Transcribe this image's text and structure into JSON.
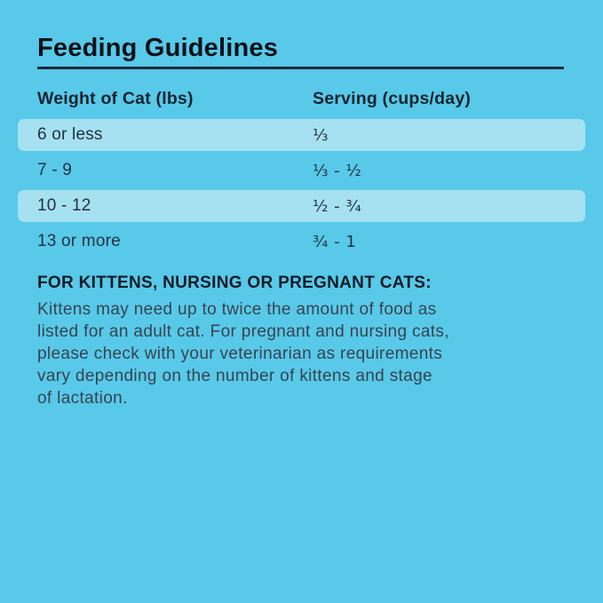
{
  "title": "Feeding Guidelines",
  "table": {
    "columns": [
      "Weight of Cat (lbs)",
      "Serving (cups/day)"
    ],
    "rows": [
      {
        "weight": "6 or less",
        "serving": "⅓",
        "highlighted": true
      },
      {
        "weight": "7 - 9",
        "serving": "⅓ - ½",
        "highlighted": false
      },
      {
        "weight": "10 - 12",
        "serving": "½ - ¾",
        "highlighted": true
      },
      {
        "weight": "13 or more",
        "serving": "¾ - 1",
        "highlighted": false
      }
    ]
  },
  "note": {
    "heading": "FOR KITTENS, NURSING OR PREGNANT CATS:",
    "lines": [
      "Kittens may need up to twice the amount of food as",
      "listed for an adult cat. For pregnant and nursing cats,",
      "please check with your veterinarian as requirements",
      "vary depending on the number of kittens and stage",
      "of lactation."
    ]
  },
  "colors": {
    "background": "#58C9E9",
    "row_highlight": "#A6E1F2",
    "rule": "#16293A",
    "title_text": "#0B1118",
    "table_header_text": "#14242F",
    "table_cell_text": "#22323F",
    "note_heading_text": "#101B26",
    "note_body_text": "#37434F"
  }
}
